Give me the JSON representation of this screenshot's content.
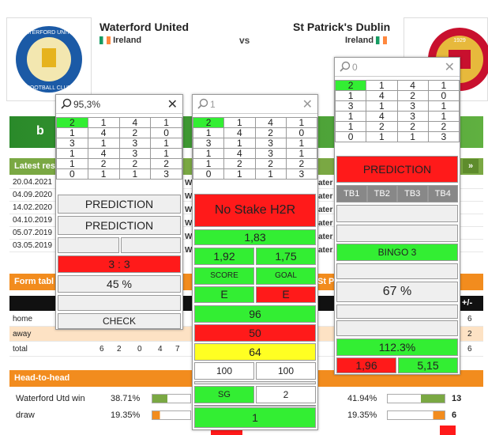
{
  "header": {
    "home_team": "Waterford United",
    "home_country": "Ireland",
    "vs": "vs",
    "away_team": "St Patrick's Dublin",
    "away_country": "Ireland",
    "home_logo_text": "WATERFORD UNITED FOOTBALL CLUB",
    "away_logo_text": "1929"
  },
  "latest_results": {
    "title": "Latest res",
    "dates": [
      "20.04.2021",
      "04.09.2020",
      "14.02.2020",
      "04.10.2019",
      "05.07.2019",
      "03.05.2019"
    ],
    "mid_frag": [
      "W",
      "W",
      "W",
      "W",
      "W",
      "W"
    ],
    "right_frag": [
      "ater",
      "ater",
      "ater",
      "ater",
      "ater",
      "ater"
    ],
    "arrow": "»"
  },
  "form_table": {
    "title": "Form tabl",
    "right_title": "St Pa",
    "right_col": "+/-",
    "rows": [
      {
        "label": "home",
        "vals": [],
        "right": "6"
      },
      {
        "label": "away",
        "vals": [],
        "right": "2"
      },
      {
        "label": "total",
        "vals": [
          "6",
          "2",
          "0",
          "4",
          "7"
        ],
        "right": "6"
      }
    ]
  },
  "h2h": {
    "title": "Head-to-head",
    "rows": [
      {
        "label": "Waterford Utd win",
        "pct": "38.71%",
        "pct2": "41.94%",
        "count": "13"
      },
      {
        "label": "draw",
        "pct": "19.35%",
        "pct2": "19.35%",
        "count": "6"
      }
    ]
  },
  "colors": {
    "green": "#33ee33",
    "red": "#ff1a1a",
    "yellow": "#ffff22",
    "section_green": "#7aa843",
    "orange": "#f28c1e"
  },
  "panel1": {
    "search": "95,3%",
    "close": "✕",
    "grid": [
      [
        "2",
        "1",
        "4",
        "1"
      ],
      [
        "1",
        "4",
        "2",
        "0"
      ],
      [
        "3",
        "1",
        "3",
        "1"
      ],
      [
        "1",
        "4",
        "3",
        "1"
      ],
      [
        "1",
        "2",
        "2",
        "2"
      ],
      [
        "0",
        "1",
        "1",
        "3"
      ]
    ],
    "prediction1": "PREDICTION",
    "prediction2": "PREDICTION",
    "score": "3 : 3",
    "percent": "45 %",
    "check": "CHECK"
  },
  "panel2": {
    "search": "1",
    "close": "✕",
    "grid": [
      [
        "2",
        "1",
        "4",
        "1"
      ],
      [
        "1",
        "4",
        "2",
        "0"
      ],
      [
        "3",
        "1",
        "3",
        "1"
      ],
      [
        "1",
        "4",
        "3",
        "1"
      ],
      [
        "1",
        "2",
        "2",
        "2"
      ],
      [
        "0",
        "1",
        "1",
        "3"
      ]
    ],
    "no_stake": "No Stake H2R",
    "odd1": "1,83",
    "odd2a": "1,92",
    "odd2b": "1,75",
    "score_label": "SCORE",
    "goal_label": "GOAL",
    "score_val": "E",
    "goal_val": "E",
    "v96": "96",
    "v50": "50",
    "v64": "64",
    "h100a": "100",
    "h100b": "100",
    "sg_label": "SG",
    "sg_val": "2",
    "bottom": "1"
  },
  "panel3": {
    "search": "0",
    "close": "✕",
    "grid": [
      [
        "2",
        "1",
        "4",
        "1"
      ],
      [
        "1",
        "4",
        "2",
        "0"
      ],
      [
        "3",
        "1",
        "3",
        "1"
      ],
      [
        "1",
        "4",
        "3",
        "1"
      ],
      [
        "1",
        "2",
        "2",
        "2"
      ],
      [
        "0",
        "1",
        "1",
        "3"
      ]
    ],
    "prediction": "PREDICTION",
    "tabs": [
      "TB1",
      "TB2",
      "TB3",
      "TB4"
    ],
    "bingo": "BINGO 3",
    "percent": "67 %",
    "pct2": "112.3%",
    "odd_a": "1,96",
    "odd_b": "5,15"
  }
}
